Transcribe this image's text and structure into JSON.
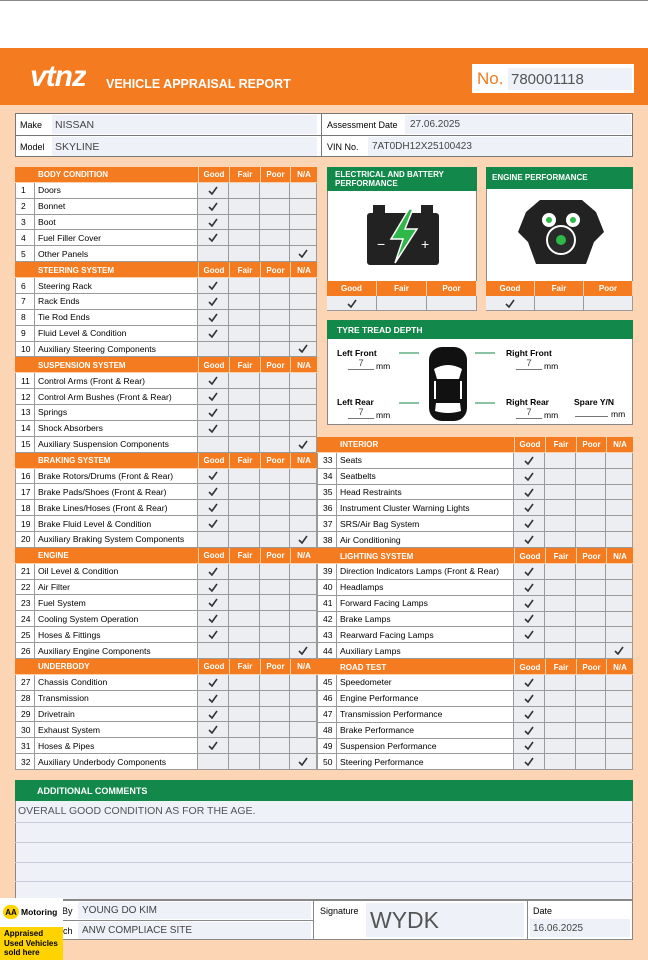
{
  "header": {
    "logo": "vtnz",
    "title": "VEHICLE APPRAISAL REPORT",
    "number_label": "No.",
    "number": "780001118"
  },
  "vehicle": {
    "make_label": "Make",
    "make": "NISSAN",
    "model_label": "Model",
    "model": "SKYLINE",
    "date_label": "Assessment Date",
    "date": "27.06.2025",
    "vin_label": "VIN No.",
    "vin": "7AT0DH12X25100423"
  },
  "left_sections": [
    {
      "title": "BODY CONDITION",
      "columns": [
        "Good",
        "Fair",
        "Poor",
        "N/A"
      ],
      "rows": [
        {
          "no": 1,
          "item": "Doors",
          "rating": "Good"
        },
        {
          "no": 2,
          "item": "Bonnet",
          "rating": "Good"
        },
        {
          "no": 3,
          "item": "Boot",
          "rating": "Good"
        },
        {
          "no": 4,
          "item": "Fuel Filler Cover",
          "rating": "Good"
        },
        {
          "no": 5,
          "item": "Other Panels",
          "rating": "N/A"
        }
      ]
    },
    {
      "title": "STEERING SYSTEM",
      "columns": [
        "Good",
        "Fair",
        "Poor",
        "N/A"
      ],
      "rows": [
        {
          "no": 6,
          "item": "Steering Rack",
          "rating": "Good"
        },
        {
          "no": 7,
          "item": "Rack Ends",
          "rating": "Good"
        },
        {
          "no": 8,
          "item": "Tie Rod Ends",
          "rating": "Good"
        },
        {
          "no": 9,
          "item": "Fluid Level & Condition",
          "rating": "Good"
        },
        {
          "no": 10,
          "item": "Auxiliary Steering Components",
          "rating": "N/A"
        }
      ]
    },
    {
      "title": "SUSPENSION SYSTEM",
      "columns": [
        "Good",
        "Fair",
        "Poor",
        "N/A"
      ],
      "rows": [
        {
          "no": 11,
          "item": "Control Arms (Front & Rear)",
          "rating": "Good"
        },
        {
          "no": 12,
          "item": "Control Arm Bushes (Front & Rear)",
          "rating": "Good"
        },
        {
          "no": 13,
          "item": "Springs",
          "rating": "Good"
        },
        {
          "no": 14,
          "item": "Shock Absorbers",
          "rating": "Good"
        },
        {
          "no": 15,
          "item": "Auxiliary Suspension Components",
          "rating": "N/A"
        }
      ]
    },
    {
      "title": "BRAKING SYSTEM",
      "columns": [
        "Good",
        "Fair",
        "Poor",
        "N/A"
      ],
      "rows": [
        {
          "no": 16,
          "item": "Brake Rotors/Drums (Front & Rear)",
          "rating": "Good"
        },
        {
          "no": 17,
          "item": "Brake Pads/Shoes (Front & Rear)",
          "rating": "Good"
        },
        {
          "no": 18,
          "item": "Brake Lines/Hoses (Front & Rear)",
          "rating": "Good"
        },
        {
          "no": 19,
          "item": "Brake Fluid Level & Condition",
          "rating": "Good"
        },
        {
          "no": 20,
          "item": "Auxiliary Braking System Components",
          "rating": "N/A"
        }
      ]
    },
    {
      "title": "ENGINE",
      "columns": [
        "Good",
        "Fair",
        "Poor",
        "N/A"
      ],
      "rows": [
        {
          "no": 21,
          "item": "Oil Level & Condition",
          "rating": "Good"
        },
        {
          "no": 22,
          "item": "Air Filter",
          "rating": "Good"
        },
        {
          "no": 23,
          "item": "Fuel System",
          "rating": "Good"
        },
        {
          "no": 24,
          "item": "Cooling System Operation",
          "rating": "Good"
        },
        {
          "no": 25,
          "item": "Hoses & Fittings",
          "rating": "Good"
        },
        {
          "no": 26,
          "item": "Auxiliary Engine Components",
          "rating": "N/A"
        }
      ]
    },
    {
      "title": "UNDERBODY",
      "columns": [
        "Good",
        "Fair",
        "Poor",
        "N/A"
      ],
      "rows": [
        {
          "no": 27,
          "item": "Chassis Condition",
          "rating": "Good"
        },
        {
          "no": 28,
          "item": "Transmission",
          "rating": "Good"
        },
        {
          "no": 29,
          "item": "Drivetrain",
          "rating": "Good"
        },
        {
          "no": 30,
          "item": "Exhaust System",
          "rating": "Good"
        },
        {
          "no": 31,
          "item": "Hoses & Pipes",
          "rating": "Good"
        },
        {
          "no": 32,
          "item": "Auxiliary Underbody Components",
          "rating": "N/A"
        }
      ]
    }
  ],
  "right_sections": [
    {
      "title": "INTERIOR",
      "columns": [
        "Good",
        "Fair",
        "Poor",
        "N/A"
      ],
      "rows": [
        {
          "no": 33,
          "item": "Seats",
          "rating": "Good"
        },
        {
          "no": 34,
          "item": "Seatbelts",
          "rating": "Good"
        },
        {
          "no": 35,
          "item": "Head Restraints",
          "rating": "Good"
        },
        {
          "no": 36,
          "item": "Instrument Cluster Warning Lights",
          "rating": "Good"
        },
        {
          "no": 37,
          "item": "SRS/Air Bag System",
          "rating": "Good"
        },
        {
          "no": 38,
          "item": "Air Conditioning",
          "rating": "Good"
        }
      ]
    },
    {
      "title": "LIGHTING SYSTEM",
      "columns": [
        "Good",
        "Fair",
        "Poor",
        "N/A"
      ],
      "rows": [
        {
          "no": 39,
          "item": "Direction Indicators Lamps (Front & Rear)",
          "rating": "Good"
        },
        {
          "no": 40,
          "item": "Headlamps",
          "rating": "Good"
        },
        {
          "no": 41,
          "item": "Forward Facing Lamps",
          "rating": "Good"
        },
        {
          "no": 42,
          "item": "Brake Lamps",
          "rating": "Good"
        },
        {
          "no": 43,
          "item": "Rearward Facing Lamps",
          "rating": "Good"
        },
        {
          "no": 44,
          "item": "Auxiliary Lamps",
          "rating": "N/A"
        }
      ]
    },
    {
      "title": "ROAD TEST",
      "columns": [
        "Good",
        "Fair",
        "Poor",
        "N/A"
      ],
      "rows": [
        {
          "no": 45,
          "item": "Speedometer",
          "rating": "Good"
        },
        {
          "no": 46,
          "item": "Engine Performance",
          "rating": "Good"
        },
        {
          "no": 47,
          "item": "Transmission Performance",
          "rating": "Good"
        },
        {
          "no": 48,
          "item": "Brake Performance",
          "rating": "Good"
        },
        {
          "no": 49,
          "item": "Suspension Performance",
          "rating": "Good"
        },
        {
          "no": 50,
          "item": "Steering Performance",
          "rating": "Good"
        }
      ]
    }
  ],
  "electrical": {
    "title": "ELECTRICAL AND BATTERY PERFORMANCE",
    "columns": [
      "Good",
      "Fair",
      "Poor"
    ],
    "rating": "Good"
  },
  "engine_performance": {
    "title": "ENGINE PERFORMANCE",
    "columns": [
      "Good",
      "Fair",
      "Poor"
    ],
    "rating": "Good"
  },
  "tyres": {
    "title": "TYRE TREAD DEPTH",
    "positions": [
      {
        "label": "Left Front",
        "depth": 7,
        "unit": "mm"
      },
      {
        "label": "Right Front",
        "depth": 7,
        "unit": "mm"
      },
      {
        "label": "Left Rear",
        "depth": 7,
        "unit": "mm"
      },
      {
        "label": "Right Rear",
        "depth": 7,
        "unit": "mm"
      }
    ],
    "spare": {
      "label": "Spare Y/N",
      "unit": "mm"
    }
  },
  "comments": {
    "title": "ADDITIONAL COMMENTS",
    "text": "OVERALL GOOD CONDITION AS FOR THE AGE."
  },
  "footer": {
    "appraiser_label": "By",
    "appraiser": "YOUNG DO KIM",
    "branch_label": "ch",
    "branch": "ANW COMPLIACE SITE",
    "signature_label": "Signature",
    "signature": "WYDK",
    "date_label": "Date",
    "date": "16.06.2025"
  },
  "badge": {
    "mark": "AA",
    "brand": "Motoring",
    "caption": "Appraised Used Vehicles sold here"
  }
}
